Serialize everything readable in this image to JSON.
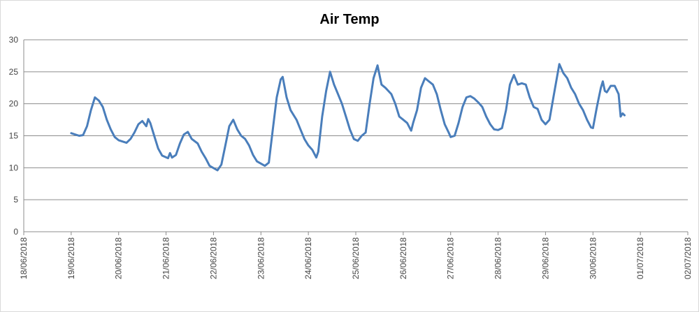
{
  "chart_data": {
    "type": "line",
    "title": "Air Temp",
    "xlabel": "",
    "ylabel": "",
    "ylim": [
      0,
      30
    ],
    "yticks": [
      "0",
      "5",
      "10",
      "15",
      "20",
      "25",
      "30"
    ],
    "xticks": [
      "18/06/2018",
      "19/06/2018",
      "20/06/2018",
      "21/06/2018",
      "22/06/2018",
      "23/06/2018",
      "24/06/2018",
      "25/06/2018",
      "26/06/2018",
      "27/06/2018",
      "28/06/2018",
      "29/06/2018",
      "30/06/2018",
      "01/07/2018",
      "02/07/2018"
    ],
    "xlim": [
      "18/06/2018",
      "02/07/2018"
    ],
    "grid": true,
    "legend": "none",
    "series": [
      {
        "color": "#4a7ebb",
        "points": [
          [
            "19/06/2018 00:00",
            15.4
          ],
          [
            "19/06/2018 02:00",
            15.2
          ],
          [
            "19/06/2018 04:00",
            15.0
          ],
          [
            "19/06/2018 06:00",
            15.1
          ],
          [
            "19/06/2018 08:00",
            16.5
          ],
          [
            "19/06/2018 10:00",
            19.0
          ],
          [
            "19/06/2018 12:00",
            21.0
          ],
          [
            "19/06/2018 14:00",
            20.5
          ],
          [
            "19/06/2018 16:00",
            19.5
          ],
          [
            "19/06/2018 18:00",
            17.5
          ],
          [
            "19/06/2018 20:00",
            16.0
          ],
          [
            "19/06/2018 22:00",
            14.8
          ],
          [
            "20/06/2018 00:00",
            14.3
          ],
          [
            "20/06/2018 04:00",
            13.9
          ],
          [
            "20/06/2018 06:00",
            14.5
          ],
          [
            "20/06/2018 08:00",
            15.5
          ],
          [
            "20/06/2018 10:00",
            16.8
          ],
          [
            "20/06/2018 12:00",
            17.3
          ],
          [
            "20/06/2018 14:00",
            16.5
          ],
          [
            "20/06/2018 15:00",
            17.6
          ],
          [
            "20/06/2018 16:00",
            17.0
          ],
          [
            "20/06/2018 18:00",
            15.0
          ],
          [
            "20/06/2018 20:00",
            13.0
          ],
          [
            "20/06/2018 22:00",
            11.9
          ],
          [
            "21/06/2018 01:00",
            11.5
          ],
          [
            "21/06/2018 02:00",
            12.3
          ],
          [
            "21/06/2018 03:00",
            11.6
          ],
          [
            "21/06/2018 05:00",
            12.0
          ],
          [
            "21/06/2018 07:00",
            13.8
          ],
          [
            "21/06/2018 09:00",
            15.2
          ],
          [
            "21/06/2018 11:00",
            15.6
          ],
          [
            "21/06/2018 13:00",
            14.5
          ],
          [
            "21/06/2018 16:00",
            13.8
          ],
          [
            "21/06/2018 18:00",
            12.5
          ],
          [
            "21/06/2018 20:00",
            11.5
          ],
          [
            "21/06/2018 22:00",
            10.3
          ],
          [
            "22/06/2018 02:00",
            9.6
          ],
          [
            "22/06/2018 04:00",
            10.5
          ],
          [
            "22/06/2018 06:00",
            13.5
          ],
          [
            "22/06/2018 08:00",
            16.5
          ],
          [
            "22/06/2018 10:00",
            17.5
          ],
          [
            "22/06/2018 12:00",
            16.0
          ],
          [
            "22/06/2018 14:00",
            15.0
          ],
          [
            "22/06/2018 16:00",
            14.5
          ],
          [
            "22/06/2018 18:00",
            13.5
          ],
          [
            "22/06/2018 20:00",
            12.0
          ],
          [
            "22/06/2018 22:00",
            11.0
          ],
          [
            "23/06/2018 02:00",
            10.3
          ],
          [
            "23/06/2018 04:00",
            10.8
          ],
          [
            "23/06/2018 06:00",
            16.0
          ],
          [
            "23/06/2018 08:00",
            21.0
          ],
          [
            "23/06/2018 10:00",
            23.8
          ],
          [
            "23/06/2018 11:00",
            24.2
          ],
          [
            "23/06/2018 13:00",
            21.0
          ],
          [
            "23/06/2018 15:00",
            19.0
          ],
          [
            "23/06/2018 18:00",
            17.5
          ],
          [
            "23/06/2018 20:00",
            16.0
          ],
          [
            "23/06/2018 22:00",
            14.5
          ],
          [
            "24/06/2018 00:00",
            13.5
          ],
          [
            "24/06/2018 02:00",
            12.8
          ],
          [
            "24/06/2018 04:00",
            11.6
          ],
          [
            "24/06/2018 05:00",
            12.5
          ],
          [
            "24/06/2018 07:00",
            18.0
          ],
          [
            "24/06/2018 09:00",
            22.0
          ],
          [
            "24/06/2018 11:00",
            25.0
          ],
          [
            "24/06/2018 13:00",
            23.0
          ],
          [
            "24/06/2018 15:00",
            21.5
          ],
          [
            "24/06/2018 17:00",
            20.0
          ],
          [
            "24/06/2018 19:00",
            18.0
          ],
          [
            "24/06/2018 21:00",
            16.0
          ],
          [
            "24/06/2018 23:00",
            14.5
          ],
          [
            "25/06/2018 01:00",
            14.2
          ],
          [
            "25/06/2018 03:00",
            15.0
          ],
          [
            "25/06/2018 05:00",
            15.5
          ],
          [
            "25/06/2018 07:00",
            20.0
          ],
          [
            "25/06/2018 09:00",
            24.0
          ],
          [
            "25/06/2018 11:00",
            26.0
          ],
          [
            "25/06/2018 13:00",
            23.0
          ],
          [
            "25/06/2018 15:00",
            22.5
          ],
          [
            "25/06/2018 18:00",
            21.5
          ],
          [
            "25/06/2018 20:00",
            20.0
          ],
          [
            "25/06/2018 22:00",
            18.0
          ],
          [
            "26/06/2018 00:00",
            17.5
          ],
          [
            "26/06/2018 02:00",
            17.0
          ],
          [
            "26/06/2018 04:00",
            15.8
          ],
          [
            "26/06/2018 05:00",
            17.0
          ],
          [
            "26/06/2018 07:00",
            19.0
          ],
          [
            "26/06/2018 09:00",
            22.5
          ],
          [
            "26/06/2018 11:00",
            24.0
          ],
          [
            "26/06/2018 13:00",
            23.5
          ],
          [
            "26/06/2018 15:00",
            23.0
          ],
          [
            "26/06/2018 17:00",
            21.5
          ],
          [
            "26/06/2018 19:00",
            19.0
          ],
          [
            "26/06/2018 21:00",
            16.8
          ],
          [
            "26/06/2018 23:00",
            15.5
          ],
          [
            "27/06/2018 00:00",
            14.8
          ],
          [
            "27/06/2018 02:00",
            15.0
          ],
          [
            "27/06/2018 04:00",
            17.0
          ],
          [
            "27/06/2018 06:00",
            19.5
          ],
          [
            "27/06/2018 08:00",
            21.0
          ],
          [
            "27/06/2018 10:00",
            21.2
          ],
          [
            "27/06/2018 12:00",
            20.8
          ],
          [
            "27/06/2018 14:00",
            20.2
          ],
          [
            "27/06/2018 16:00",
            19.5
          ],
          [
            "27/06/2018 18:00",
            18.0
          ],
          [
            "27/06/2018 20:00",
            16.8
          ],
          [
            "27/06/2018 22:00",
            16.0
          ],
          [
            "28/06/2018 00:00",
            15.9
          ],
          [
            "28/06/2018 02:00",
            16.2
          ],
          [
            "28/06/2018 04:00",
            19.0
          ],
          [
            "28/06/2018 06:00",
            23.0
          ],
          [
            "28/06/2018 08:00",
            24.5
          ],
          [
            "28/06/2018 10:00",
            23.0
          ],
          [
            "28/06/2018 12:00",
            23.2
          ],
          [
            "28/06/2018 14:00",
            23.0
          ],
          [
            "28/06/2018 16:00",
            21.0
          ],
          [
            "28/06/2018 18:00",
            19.5
          ],
          [
            "28/06/2018 20:00",
            19.2
          ],
          [
            "28/06/2018 22:00",
            17.5
          ],
          [
            "29/06/2018 00:00",
            16.8
          ],
          [
            "29/06/2018 02:00",
            17.5
          ],
          [
            "29/06/2018 04:00",
            21.0
          ],
          [
            "29/06/2018 06:00",
            24.5
          ],
          [
            "29/06/2018 07:00",
            26.2
          ],
          [
            "29/06/2018 09:00",
            24.8
          ],
          [
            "29/06/2018 11:00",
            24.0
          ],
          [
            "29/06/2018 13:00",
            22.5
          ],
          [
            "29/06/2018 15:00",
            21.5
          ],
          [
            "29/06/2018 17:00",
            20.0
          ],
          [
            "29/06/2018 19:00",
            19.0
          ],
          [
            "29/06/2018 21:00",
            17.5
          ],
          [
            "29/06/2018 23:00",
            16.3
          ],
          [
            "30/06/2018 00:00",
            16.2
          ],
          [
            "30/06/2018 02:00",
            19.5
          ],
          [
            "30/06/2018 04:00",
            22.5
          ],
          [
            "30/06/2018 05:00",
            23.5
          ],
          [
            "30/06/2018 06:00",
            22.0
          ],
          [
            "30/06/2018 07:00",
            21.8
          ],
          [
            "30/06/2018 09:00",
            22.8
          ],
          [
            "30/06/2018 11:00",
            22.8
          ],
          [
            "30/06/2018 13:00",
            21.5
          ],
          [
            "30/06/2018 14:00",
            18.0
          ],
          [
            "30/06/2018 15:00",
            18.5
          ],
          [
            "30/06/2018 16:00",
            18.2
          ]
        ]
      }
    ]
  }
}
